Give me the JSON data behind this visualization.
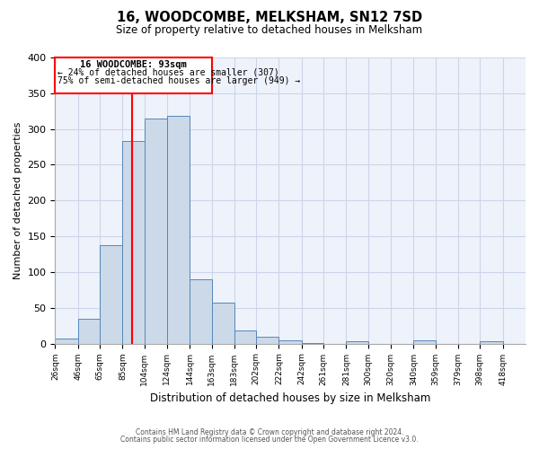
{
  "title": "16, WOODCOMBE, MELKSHAM, SN12 7SD",
  "subtitle": "Size of property relative to detached houses in Melksham",
  "xlabel": "Distribution of detached houses by size in Melksham",
  "ylabel": "Number of detached properties",
  "bin_labels": [
    "26sqm",
    "46sqm",
    "65sqm",
    "85sqm",
    "104sqm",
    "124sqm",
    "144sqm",
    "163sqm",
    "183sqm",
    "202sqm",
    "222sqm",
    "242sqm",
    "261sqm",
    "281sqm",
    "300sqm",
    "320sqm",
    "340sqm",
    "359sqm",
    "379sqm",
    "398sqm",
    "418sqm"
  ],
  "bar_heights": [
    7,
    35,
    138,
    283,
    314,
    318,
    90,
    57,
    18,
    10,
    4,
    1,
    0,
    3,
    0,
    0,
    4,
    0,
    0,
    3,
    0
  ],
  "bar_color": "#ccd9e8",
  "bar_edge_color": "#5588bb",
  "annotation_line1": "16 WOODCOMBE: 93sqm",
  "annotation_line2": "← 24% of detached houses are smaller (307)",
  "annotation_line3": "75% of semi-detached houses are larger (949) →",
  "ylim": [
    0,
    400
  ],
  "yticks": [
    0,
    50,
    100,
    150,
    200,
    250,
    300,
    350,
    400
  ],
  "grid_color": "#ccd5e8",
  "background_color": "#eef2fb",
  "footer1": "Contains HM Land Registry data © Crown copyright and database right 2024.",
  "footer2": "Contains public sector information licensed under the Open Government Licence v3.0."
}
